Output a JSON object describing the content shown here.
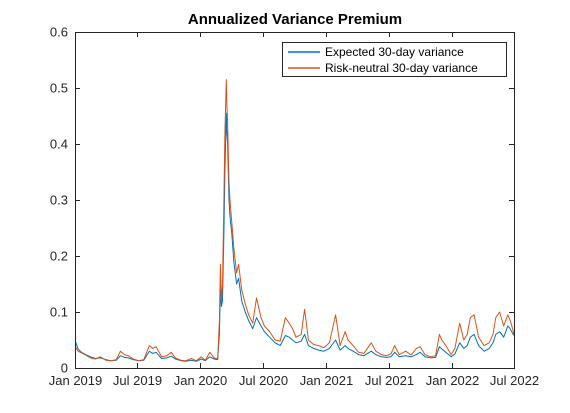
{
  "chart_data": {
    "type": "line",
    "title": "Annualized Variance Premium",
    "xlabel": "",
    "ylabel": "",
    "xlim": [
      "2019-01-01",
      "2022-07-01"
    ],
    "ylim": [
      0,
      0.6
    ],
    "grid": false,
    "legend_position": "top-right",
    "x_ticks": [
      {
        "date": "2019-01-01",
        "label": "Jan 2019"
      },
      {
        "date": "2019-07-01",
        "label": "Jul 2019"
      },
      {
        "date": "2020-01-01",
        "label": "Jan 2020"
      },
      {
        "date": "2020-07-01",
        "label": "Jul 2020"
      },
      {
        "date": "2021-01-01",
        "label": "Jan 2021"
      },
      {
        "date": "2021-07-01",
        "label": "Jul 2021"
      },
      {
        "date": "2022-01-01",
        "label": "Jan 2022"
      },
      {
        "date": "2022-07-01",
        "label": "Jul 2022"
      }
    ],
    "y_ticks": [
      {
        "value": 0,
        "label": "0"
      },
      {
        "value": 0.1,
        "label": "0.1"
      },
      {
        "value": 0.2,
        "label": "0.2"
      },
      {
        "value": 0.3,
        "label": "0.3"
      },
      {
        "value": 0.4,
        "label": "0.4"
      },
      {
        "value": 0.5,
        "label": "0.5"
      },
      {
        "value": 0.6,
        "label": "0.6"
      }
    ],
    "series": [
      {
        "name": "Expected 30-day variance",
        "color": "#0072BD",
        "points": [
          [
            "2019-01-02",
            0.048
          ],
          [
            "2019-01-10",
            0.034
          ],
          [
            "2019-01-20",
            0.028
          ],
          [
            "2019-02-01",
            0.024
          ],
          [
            "2019-02-15",
            0.02
          ],
          [
            "2019-03-01",
            0.017
          ],
          [
            "2019-03-15",
            0.018
          ],
          [
            "2019-04-01",
            0.015
          ],
          [
            "2019-04-15",
            0.013
          ],
          [
            "2019-05-01",
            0.014
          ],
          [
            "2019-05-13",
            0.022
          ],
          [
            "2019-05-25",
            0.019
          ],
          [
            "2019-06-05",
            0.018
          ],
          [
            "2019-06-20",
            0.015
          ],
          [
            "2019-07-05",
            0.013
          ],
          [
            "2019-07-20",
            0.014
          ],
          [
            "2019-08-05",
            0.03
          ],
          [
            "2019-08-15",
            0.026
          ],
          [
            "2019-08-25",
            0.028
          ],
          [
            "2019-09-10",
            0.017
          ],
          [
            "2019-09-25",
            0.018
          ],
          [
            "2019-10-08",
            0.021
          ],
          [
            "2019-10-20",
            0.016
          ],
          [
            "2019-11-05",
            0.013
          ],
          [
            "2019-11-20",
            0.012
          ],
          [
            "2019-12-05",
            0.014
          ],
          [
            "2019-12-20",
            0.012
          ],
          [
            "2020-01-03",
            0.016
          ],
          [
            "2020-01-15",
            0.013
          ],
          [
            "2020-01-28",
            0.02
          ],
          [
            "2020-02-10",
            0.016
          ],
          [
            "2020-02-20",
            0.015
          ],
          [
            "2020-02-25",
            0.06
          ],
          [
            "2020-02-28",
            0.14
          ],
          [
            "2020-03-02",
            0.11
          ],
          [
            "2020-03-05",
            0.12
          ],
          [
            "2020-03-09",
            0.24
          ],
          [
            "2020-03-12",
            0.35
          ],
          [
            "2020-03-16",
            0.455
          ],
          [
            "2020-03-18",
            0.42
          ],
          [
            "2020-03-20",
            0.4
          ],
          [
            "2020-03-24",
            0.3
          ],
          [
            "2020-03-27",
            0.27
          ],
          [
            "2020-04-01",
            0.24
          ],
          [
            "2020-04-07",
            0.19
          ],
          [
            "2020-04-15",
            0.15
          ],
          [
            "2020-04-21",
            0.16
          ],
          [
            "2020-04-30",
            0.12
          ],
          [
            "2020-05-10",
            0.1
          ],
          [
            "2020-05-20",
            0.085
          ],
          [
            "2020-06-01",
            0.07
          ],
          [
            "2020-06-12",
            0.09
          ],
          [
            "2020-06-25",
            0.075
          ],
          [
            "2020-07-05",
            0.065
          ],
          [
            "2020-07-20",
            0.055
          ],
          [
            "2020-08-05",
            0.045
          ],
          [
            "2020-08-20",
            0.04
          ],
          [
            "2020-09-04",
            0.058
          ],
          [
            "2020-09-15",
            0.055
          ],
          [
            "2020-09-25",
            0.05
          ],
          [
            "2020-10-05",
            0.045
          ],
          [
            "2020-10-20",
            0.048
          ],
          [
            "2020-10-30",
            0.06
          ],
          [
            "2020-11-10",
            0.04
          ],
          [
            "2020-11-25",
            0.035
          ],
          [
            "2020-12-10",
            0.032
          ],
          [
            "2020-12-25",
            0.03
          ],
          [
            "2021-01-10",
            0.035
          ],
          [
            "2021-01-28",
            0.05
          ],
          [
            "2021-02-10",
            0.032
          ],
          [
            "2021-02-25",
            0.04
          ],
          [
            "2021-03-05",
            0.035
          ],
          [
            "2021-03-20",
            0.03
          ],
          [
            "2021-04-05",
            0.024
          ],
          [
            "2021-04-20",
            0.022
          ],
          [
            "2021-05-12",
            0.03
          ],
          [
            "2021-05-25",
            0.024
          ],
          [
            "2021-06-10",
            0.02
          ],
          [
            "2021-06-25",
            0.019
          ],
          [
            "2021-07-08",
            0.02
          ],
          [
            "2021-07-19",
            0.028
          ],
          [
            "2021-08-01",
            0.02
          ],
          [
            "2021-08-20",
            0.022
          ],
          [
            "2021-09-05",
            0.02
          ],
          [
            "2021-09-20",
            0.024
          ],
          [
            "2021-10-01",
            0.028
          ],
          [
            "2021-10-15",
            0.02
          ],
          [
            "2021-11-01",
            0.018
          ],
          [
            "2021-11-15",
            0.019
          ],
          [
            "2021-11-26",
            0.038
          ],
          [
            "2021-12-03",
            0.034
          ],
          [
            "2021-12-15",
            0.028
          ],
          [
            "2021-12-30",
            0.02
          ],
          [
            "2022-01-10",
            0.025
          ],
          [
            "2022-01-24",
            0.045
          ],
          [
            "2022-02-05",
            0.035
          ],
          [
            "2022-02-15",
            0.04
          ],
          [
            "2022-02-24",
            0.055
          ],
          [
            "2022-03-07",
            0.06
          ],
          [
            "2022-03-20",
            0.04
          ],
          [
            "2022-04-05",
            0.03
          ],
          [
            "2022-04-20",
            0.035
          ],
          [
            "2022-05-01",
            0.045
          ],
          [
            "2022-05-09",
            0.06
          ],
          [
            "2022-05-20",
            0.065
          ],
          [
            "2022-06-01",
            0.055
          ],
          [
            "2022-06-13",
            0.075
          ],
          [
            "2022-06-20",
            0.07
          ],
          [
            "2022-06-27",
            0.062
          ],
          [
            "2022-07-01",
            0.058
          ]
        ]
      },
      {
        "name": "Risk-neutral 30-day variance",
        "color": "#D95319",
        "points": [
          [
            "2019-01-02",
            0.038
          ],
          [
            "2019-01-10",
            0.03
          ],
          [
            "2019-01-20",
            0.027
          ],
          [
            "2019-02-01",
            0.023
          ],
          [
            "2019-02-15",
            0.018
          ],
          [
            "2019-03-01",
            0.016
          ],
          [
            "2019-03-15",
            0.02
          ],
          [
            "2019-04-01",
            0.014
          ],
          [
            "2019-04-15",
            0.013
          ],
          [
            "2019-05-01",
            0.015
          ],
          [
            "2019-05-13",
            0.03
          ],
          [
            "2019-05-25",
            0.024
          ],
          [
            "2019-06-05",
            0.022
          ],
          [
            "2019-06-20",
            0.016
          ],
          [
            "2019-07-05",
            0.013
          ],
          [
            "2019-07-20",
            0.015
          ],
          [
            "2019-08-05",
            0.04
          ],
          [
            "2019-08-15",
            0.035
          ],
          [
            "2019-08-25",
            0.038
          ],
          [
            "2019-09-10",
            0.02
          ],
          [
            "2019-09-25",
            0.022
          ],
          [
            "2019-10-08",
            0.028
          ],
          [
            "2019-10-20",
            0.018
          ],
          [
            "2019-11-05",
            0.014
          ],
          [
            "2019-11-20",
            0.013
          ],
          [
            "2019-12-05",
            0.017
          ],
          [
            "2019-12-20",
            0.013
          ],
          [
            "2020-01-03",
            0.02
          ],
          [
            "2020-01-15",
            0.014
          ],
          [
            "2020-01-28",
            0.028
          ],
          [
            "2020-02-10",
            0.018
          ],
          [
            "2020-02-20",
            0.016
          ],
          [
            "2020-02-25",
            0.085
          ],
          [
            "2020-02-28",
            0.185
          ],
          [
            "2020-03-02",
            0.12
          ],
          [
            "2020-03-05",
            0.15
          ],
          [
            "2020-03-09",
            0.3
          ],
          [
            "2020-03-12",
            0.42
          ],
          [
            "2020-03-16",
            0.515
          ],
          [
            "2020-03-18",
            0.47
          ],
          [
            "2020-03-20",
            0.44
          ],
          [
            "2020-03-24",
            0.33
          ],
          [
            "2020-03-27",
            0.3
          ],
          [
            "2020-04-01",
            0.26
          ],
          [
            "2020-04-07",
            0.215
          ],
          [
            "2020-04-15",
            0.17
          ],
          [
            "2020-04-21",
            0.185
          ],
          [
            "2020-04-30",
            0.14
          ],
          [
            "2020-05-10",
            0.115
          ],
          [
            "2020-05-20",
            0.095
          ],
          [
            "2020-06-01",
            0.08
          ],
          [
            "2020-06-12",
            0.125
          ],
          [
            "2020-06-25",
            0.09
          ],
          [
            "2020-07-05",
            0.075
          ],
          [
            "2020-07-20",
            0.065
          ],
          [
            "2020-08-05",
            0.05
          ],
          [
            "2020-08-20",
            0.048
          ],
          [
            "2020-09-04",
            0.09
          ],
          [
            "2020-09-15",
            0.08
          ],
          [
            "2020-09-25",
            0.07
          ],
          [
            "2020-10-05",
            0.055
          ],
          [
            "2020-10-20",
            0.06
          ],
          [
            "2020-10-30",
            0.105
          ],
          [
            "2020-11-10",
            0.05
          ],
          [
            "2020-11-25",
            0.042
          ],
          [
            "2020-12-10",
            0.04
          ],
          [
            "2020-12-25",
            0.036
          ],
          [
            "2021-01-10",
            0.045
          ],
          [
            "2021-01-28",
            0.095
          ],
          [
            "2021-02-10",
            0.04
          ],
          [
            "2021-02-25",
            0.065
          ],
          [
            "2021-03-05",
            0.05
          ],
          [
            "2021-03-20",
            0.04
          ],
          [
            "2021-04-05",
            0.028
          ],
          [
            "2021-04-20",
            0.026
          ],
          [
            "2021-05-12",
            0.045
          ],
          [
            "2021-05-25",
            0.03
          ],
          [
            "2021-06-10",
            0.024
          ],
          [
            "2021-06-25",
            0.022
          ],
          [
            "2021-07-08",
            0.025
          ],
          [
            "2021-07-19",
            0.04
          ],
          [
            "2021-08-01",
            0.024
          ],
          [
            "2021-08-20",
            0.03
          ],
          [
            "2021-09-05",
            0.023
          ],
          [
            "2021-09-20",
            0.035
          ],
          [
            "2021-10-01",
            0.038
          ],
          [
            "2021-10-15",
            0.024
          ],
          [
            "2021-11-01",
            0.02
          ],
          [
            "2021-11-15",
            0.022
          ],
          [
            "2021-11-26",
            0.06
          ],
          [
            "2021-12-03",
            0.05
          ],
          [
            "2021-12-15",
            0.04
          ],
          [
            "2021-12-30",
            0.024
          ],
          [
            "2022-01-10",
            0.035
          ],
          [
            "2022-01-24",
            0.08
          ],
          [
            "2022-02-05",
            0.05
          ],
          [
            "2022-02-15",
            0.06
          ],
          [
            "2022-02-24",
            0.09
          ],
          [
            "2022-03-07",
            0.095
          ],
          [
            "2022-03-20",
            0.055
          ],
          [
            "2022-04-05",
            0.04
          ],
          [
            "2022-04-20",
            0.045
          ],
          [
            "2022-05-01",
            0.06
          ],
          [
            "2022-05-09",
            0.09
          ],
          [
            "2022-05-20",
            0.1
          ],
          [
            "2022-06-01",
            0.075
          ],
          [
            "2022-06-13",
            0.095
          ],
          [
            "2022-06-20",
            0.085
          ],
          [
            "2022-06-27",
            0.07
          ],
          [
            "2022-07-01",
            0.06
          ]
        ]
      }
    ]
  }
}
